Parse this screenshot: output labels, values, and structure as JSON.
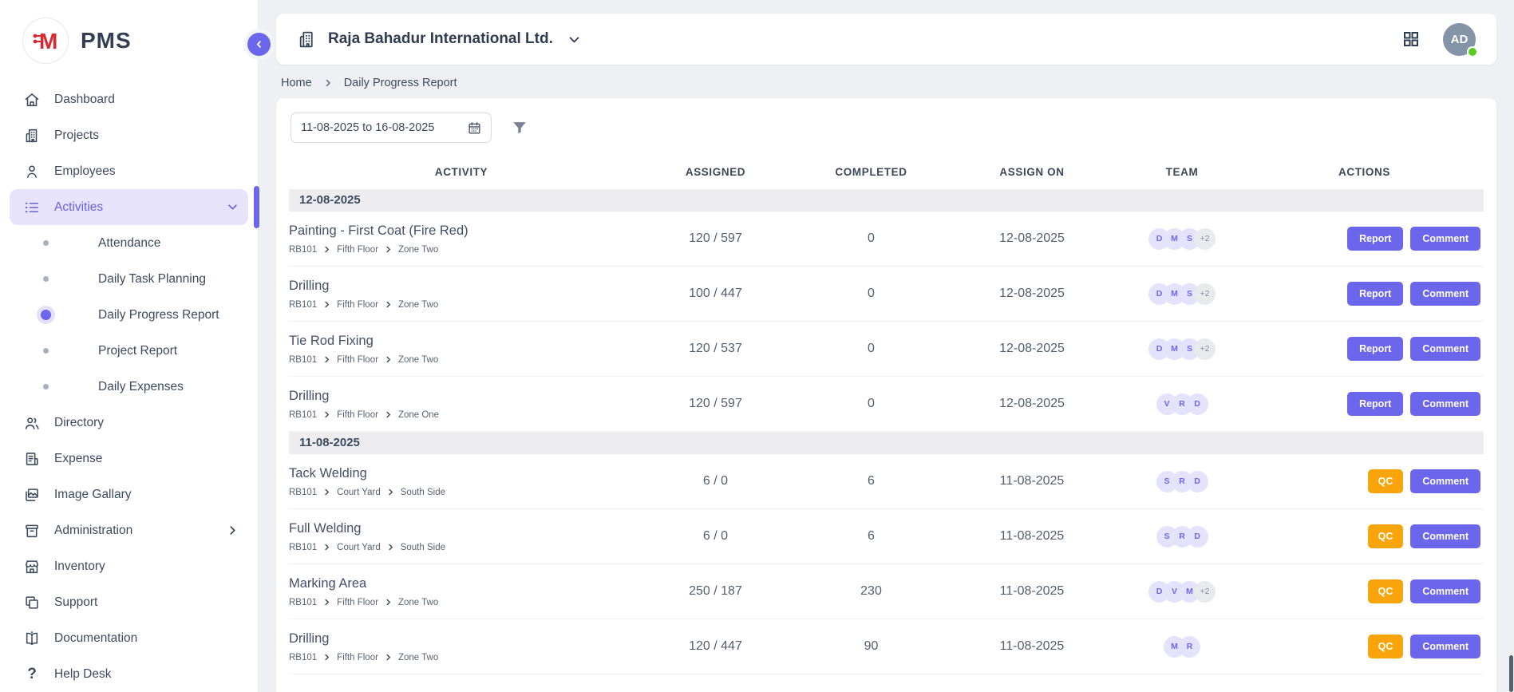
{
  "brand": {
    "logo_letter": "M",
    "app_name": "PMS",
    "logo_color": "#d9282e"
  },
  "colors": {
    "accent_purple": "#6b66ec",
    "qc_orange": "#f9a40b",
    "active_bg": "#e7e3fa",
    "badge_bg": "#e5e2fb",
    "status_green": "#5ecb22",
    "avatar_bg": "#8593a6",
    "group_row_bg": "#ededf0"
  },
  "sidebar": {
    "items": [
      {
        "label": "Dashboard",
        "icon": "home"
      },
      {
        "label": "Projects",
        "icon": "building"
      },
      {
        "label": "Employees",
        "icon": "person"
      },
      {
        "label": "Activities",
        "icon": "list",
        "active": true,
        "expanded": true,
        "children": [
          {
            "label": "Attendance"
          },
          {
            "label": "Daily Task Planning"
          },
          {
            "label": "Daily Progress Report",
            "active": true
          },
          {
            "label": "Project Report"
          },
          {
            "label": "Daily Expenses"
          }
        ]
      },
      {
        "label": "Directory",
        "icon": "people"
      },
      {
        "label": "Expense",
        "icon": "receipt"
      },
      {
        "label": "Image Gallary",
        "icon": "image"
      },
      {
        "label": "Administration",
        "icon": "archive",
        "has_submenu": true
      },
      {
        "label": "Inventory",
        "icon": "store"
      },
      {
        "label": "Support",
        "icon": "copy"
      },
      {
        "label": "Documentation",
        "icon": "book"
      },
      {
        "label": "Help Desk",
        "icon": "question"
      }
    ]
  },
  "header": {
    "company": "Raja Bahadur International Ltd.",
    "avatar_initials": "AD"
  },
  "breadcrumb": {
    "home": "Home",
    "current": "Daily Progress Report"
  },
  "filters": {
    "date_range": "11-08-2025 to 16-08-2025"
  },
  "table": {
    "columns": [
      "ACTIVITY",
      "ASSIGNED",
      "COMPLETED",
      "ASSIGN ON",
      "TEAM",
      "ACTIONS"
    ],
    "groups": [
      {
        "date": "12-08-2025",
        "rows": [
          {
            "title": "Painting - First Coat (Fire Red)",
            "path": [
              "RB101",
              "Fifth Floor",
              "Zone Two"
            ],
            "assigned": "120 / 597",
            "completed": "0",
            "assign_on": "12-08-2025",
            "team": [
              "D",
              "M",
              "S"
            ],
            "team_extra": "+2",
            "actions": [
              {
                "label": "Report",
                "style": "purple"
              },
              {
                "label": "Comment",
                "style": "purple"
              }
            ]
          },
          {
            "title": "Drilling",
            "path": [
              "RB101",
              "Fifth Floor",
              "Zone Two"
            ],
            "assigned": "100 / 447",
            "completed": "0",
            "assign_on": "12-08-2025",
            "team": [
              "D",
              "M",
              "S"
            ],
            "team_extra": "+2",
            "actions": [
              {
                "label": "Report",
                "style": "purple"
              },
              {
                "label": "Comment",
                "style": "purple"
              }
            ]
          },
          {
            "title": "Tie Rod Fixing",
            "path": [
              "RB101",
              "Fifth Floor",
              "Zone Two"
            ],
            "assigned": "120 / 537",
            "completed": "0",
            "assign_on": "12-08-2025",
            "team": [
              "D",
              "M",
              "S"
            ],
            "team_extra": "+2",
            "actions": [
              {
                "label": "Report",
                "style": "purple"
              },
              {
                "label": "Comment",
                "style": "purple"
              }
            ]
          },
          {
            "title": "Drilling",
            "path": [
              "RB101",
              "Fifth Floor",
              "Zone One"
            ],
            "assigned": "120 / 597",
            "completed": "0",
            "assign_on": "12-08-2025",
            "team": [
              "V",
              "R",
              "D"
            ],
            "team_extra": null,
            "actions": [
              {
                "label": "Report",
                "style": "purple"
              },
              {
                "label": "Comment",
                "style": "purple"
              }
            ]
          }
        ]
      },
      {
        "date": "11-08-2025",
        "rows": [
          {
            "title": "Tack Welding",
            "path": [
              "RB101",
              "Court Yard",
              "South Side"
            ],
            "assigned": "6 / 0",
            "completed": "6",
            "assign_on": "11-08-2025",
            "team": [
              "S",
              "R",
              "D"
            ],
            "team_extra": null,
            "actions": [
              {
                "label": "QC",
                "style": "orange"
              },
              {
                "label": "Comment",
                "style": "purple"
              }
            ]
          },
          {
            "title": "Full Welding",
            "path": [
              "RB101",
              "Court Yard",
              "South Side"
            ],
            "assigned": "6 / 0",
            "completed": "6",
            "assign_on": "11-08-2025",
            "team": [
              "S",
              "R",
              "D"
            ],
            "team_extra": null,
            "actions": [
              {
                "label": "QC",
                "style": "orange"
              },
              {
                "label": "Comment",
                "style": "purple"
              }
            ]
          },
          {
            "title": "Marking Area",
            "path": [
              "RB101",
              "Fifth Floor",
              "Zone Two"
            ],
            "assigned": "250 / 187",
            "completed": "230",
            "assign_on": "11-08-2025",
            "team": [
              "D",
              "V",
              "M"
            ],
            "team_extra": "+2",
            "actions": [
              {
                "label": "QC",
                "style": "orange"
              },
              {
                "label": "Comment",
                "style": "purple"
              }
            ]
          },
          {
            "title": "Drilling",
            "path": [
              "RB101",
              "Fifth Floor",
              "Zone Two"
            ],
            "assigned": "120 / 447",
            "completed": "90",
            "assign_on": "11-08-2025",
            "team": [
              "M",
              "R"
            ],
            "team_extra": null,
            "actions": [
              {
                "label": "QC",
                "style": "orange"
              },
              {
                "label": "Comment",
                "style": "purple"
              }
            ]
          }
        ]
      }
    ]
  }
}
